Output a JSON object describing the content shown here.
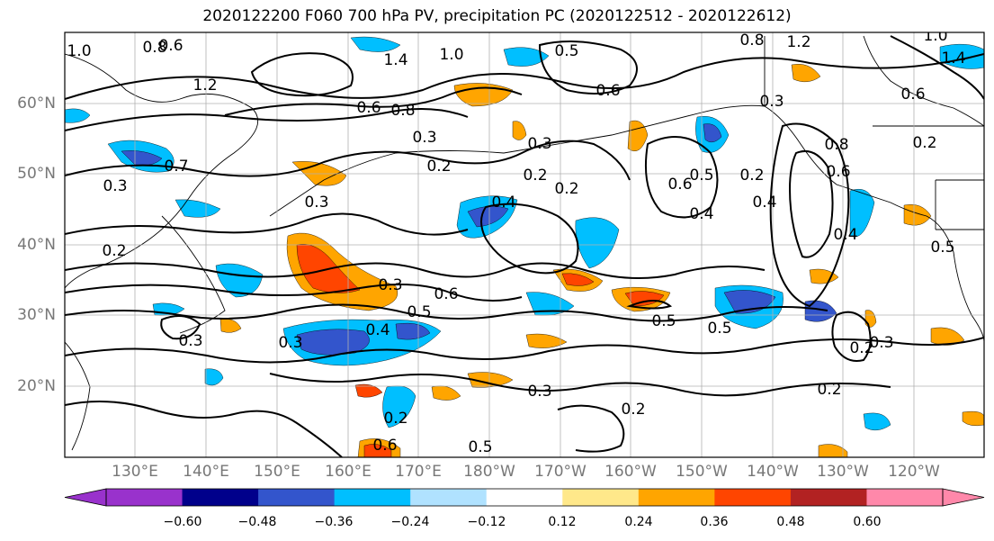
{
  "title": "2020122200 F060 700 hPa PV, precipitation PC (2020122512 - 2020122612)",
  "lat_labels": [
    "60°N",
    "50°N",
    "40°N",
    "30°N",
    "20°N"
  ],
  "lon_labels": [
    "130°E",
    "140°E",
    "150°E",
    "160°E",
    "170°E",
    "180°W",
    "170°W",
    "160°W",
    "150°W",
    "140°W",
    "130°W",
    "120°W"
  ],
  "colorbar": {
    "colors": [
      "#9932cc",
      "#00008b",
      "#3355cc",
      "#00bfff",
      "#b0e2ff",
      "#ffffff",
      "#ffe88a",
      "#ffa500",
      "#ff4500",
      "#b22222",
      "#ff88aa"
    ],
    "labels": [
      "−0.60",
      "−0.48",
      "−0.36",
      "−0.24",
      "−0.12",
      "0.12",
      "0.24",
      "0.36",
      "0.48",
      "0.60"
    ]
  },
  "contour_labels": [
    "1.0",
    "0.8",
    "0.6",
    "1.2",
    "1.4",
    "1.0",
    "0.5",
    "0.8",
    "1.2",
    "1.0",
    "0.6",
    "1.4",
    "0.8",
    "0.6",
    "0.3",
    "0.2",
    "0.3",
    "0.2",
    "0.7",
    "0.6",
    "0.3",
    "0.3",
    "0.2",
    "0.6",
    "0.5",
    "0.4",
    "0.2",
    "0.4",
    "0.8",
    "0.6",
    "0.4",
    "0.3",
    "0.5",
    "0.6",
    "0.5",
    "0.3",
    "0.3",
    "0.4",
    "0.5",
    "0.5",
    "0.3",
    "0.2",
    "0.2",
    "0.2",
    "0.6",
    "0.5",
    "0.2",
    "0.3",
    "0.2",
    "0.3",
    "0.2",
    "0.4"
  ]
}
